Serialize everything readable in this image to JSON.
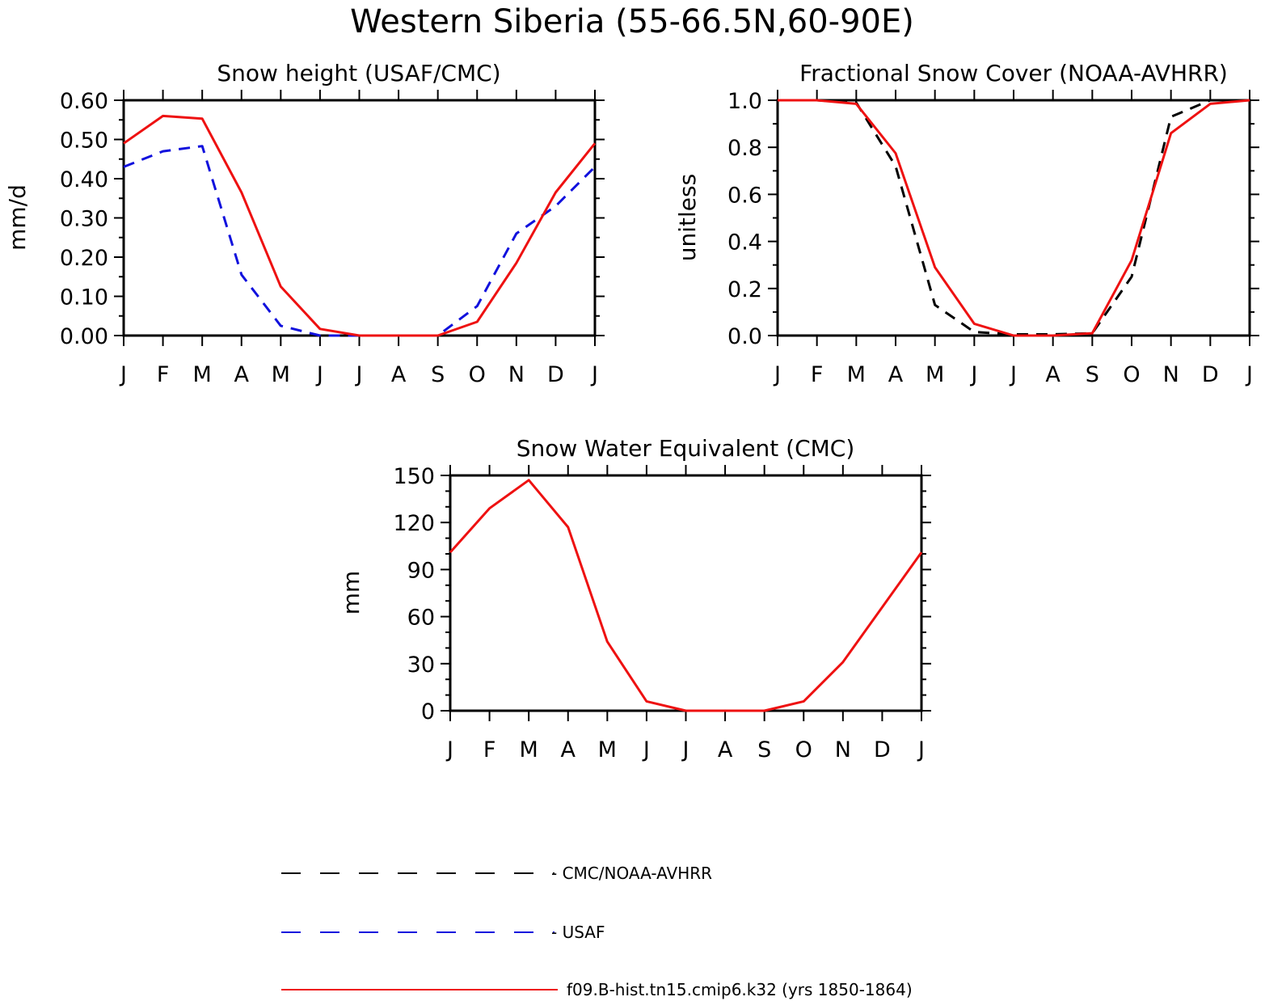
{
  "figure_title": "Western Siberia (55-66.5N,60-90E)",
  "colors": {
    "model": "#ee1111",
    "usaf": "#1111dd",
    "cmc": "#000000",
    "axis": "#000000"
  },
  "chart_data": [
    {
      "type": "line",
      "title": "Snow height (USAF/CMC)",
      "xlabel": "",
      "ylabel": "mm/d",
      "categories": [
        "J",
        "F",
        "M",
        "A",
        "M",
        "J",
        "J",
        "A",
        "S",
        "O",
        "N",
        "D",
        "J"
      ],
      "ylim": [
        0,
        0.6
      ],
      "yticks": [
        0,
        0.1,
        0.2,
        0.3,
        0.4,
        0.5,
        0.6
      ],
      "ytick_labels": [
        "0.00",
        "0.10",
        "0.20",
        "0.30",
        "0.40",
        "0.50",
        "0.60"
      ],
      "yminor": [
        0.05,
        0.15,
        0.25,
        0.35,
        0.45,
        0.55
      ],
      "series": [
        {
          "name": "CMC/NOAA-AVHRR",
          "color": "#000000",
          "style": "dashed",
          "values": [
            0,
            0,
            0,
            0,
            0,
            0,
            0,
            0,
            0,
            0,
            0,
            0,
            0
          ]
        },
        {
          "name": "USAF",
          "color": "#1111dd",
          "style": "dashed",
          "values": [
            0.43,
            0.47,
            0.483,
            0.155,
            0.025,
            0.0,
            0.0,
            0.0,
            0.0,
            0.075,
            0.26,
            0.33,
            0.43
          ]
        },
        {
          "name": "f09.B-hist.tn15.cmip6.k32 (yrs 1850-1864)",
          "color": "#ee1111",
          "style": "solid",
          "values": [
            0.49,
            0.56,
            0.553,
            0.365,
            0.125,
            0.017,
            0.0,
            0.0,
            0.0,
            0.035,
            0.185,
            0.365,
            0.49
          ]
        }
      ]
    },
    {
      "type": "line",
      "title": "Fractional Snow Cover (NOAA-AVHRR)",
      "xlabel": "",
      "ylabel": "unitless",
      "categories": [
        "J",
        "F",
        "M",
        "A",
        "M",
        "J",
        "J",
        "A",
        "S",
        "O",
        "N",
        "D",
        "J"
      ],
      "ylim": [
        0,
        1.0
      ],
      "yticks": [
        0,
        0.2,
        0.4,
        0.6,
        0.8,
        1.0
      ],
      "ytick_labels": [
        "0.0",
        "0.2",
        "0.4",
        "0.6",
        "0.8",
        "1.0"
      ],
      "yminor": [
        0.1,
        0.3,
        0.5,
        0.7,
        0.9
      ],
      "series": [
        {
          "name": "CMC/NOAA-AVHRR",
          "color": "#000000",
          "style": "dashed",
          "values": [
            1.0,
            1.0,
            0.99,
            0.72,
            0.13,
            0.015,
            0.005,
            0.005,
            0.01,
            0.25,
            0.93,
            1.0,
            1.0
          ]
        },
        {
          "name": "f09.B-hist.tn15.cmip6.k32 (yrs 1850-1864)",
          "color": "#ee1111",
          "style": "solid",
          "values": [
            1.0,
            1.0,
            0.985,
            0.775,
            0.29,
            0.05,
            0.0,
            0.0,
            0.01,
            0.32,
            0.86,
            0.985,
            1.0
          ]
        }
      ]
    },
    {
      "type": "line",
      "title": "Snow Water Equivalent (CMC)",
      "xlabel": "",
      "ylabel": "mm",
      "categories": [
        "J",
        "F",
        "M",
        "A",
        "M",
        "J",
        "J",
        "A",
        "S",
        "O",
        "N",
        "D",
        "J"
      ],
      "ylim": [
        0,
        150
      ],
      "yticks": [
        0,
        30,
        60,
        90,
        120,
        150
      ],
      "ytick_labels": [
        "0",
        "30",
        "60",
        "90",
        "120",
        "150"
      ],
      "yminor": [
        10,
        20,
        40,
        50,
        70,
        80,
        100,
        110,
        130,
        140
      ],
      "series": [
        {
          "name": "CMC/NOAA-AVHRR",
          "color": "#000000",
          "style": "dashed",
          "values": [
            0,
            0,
            0,
            0,
            0,
            0,
            0,
            0,
            0,
            0,
            0,
            0,
            0
          ]
        },
        {
          "name": "f09.B-hist.tn15.cmip6.k32 (yrs 1850-1864)",
          "color": "#ee1111",
          "style": "solid",
          "values": [
            101,
            129,
            147,
            117,
            44,
            6,
            0,
            0,
            0,
            6,
            31,
            66,
            101
          ]
        }
      ]
    }
  ],
  "legend": [
    {
      "label": "- CMC/NOAA-AVHRR",
      "color": "#000000",
      "style": "dashed"
    },
    {
      "label": "- USAF",
      "color": "#1111dd",
      "style": "dashed"
    },
    {
      "label": "f09.B-hist.tn15.cmip6.k32 (yrs 1850-1864)",
      "color": "#ee1111",
      "style": "solid"
    }
  ]
}
